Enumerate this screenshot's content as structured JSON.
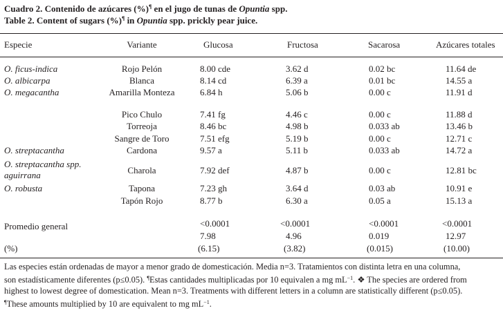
{
  "caption": {
    "es": {
      "prefix": "Cuadro 2. Contenido de azúcares (%)",
      "sup": "¶",
      "suffix": " en el jugo de tunas de ",
      "genus": "Opuntia",
      "end": " spp."
    },
    "en": {
      "prefix": "Table 2. Content of sugars (%)",
      "sup": "¶",
      "suffix": " in ",
      "genus": "Opuntia",
      "end": " spp. prickly pear juice."
    }
  },
  "headers": [
    "Especie",
    "Variante",
    "Glucosa",
    "Fructosa",
    "Sacarosa",
    "Azúcares totales"
  ],
  "rows": [
    {
      "especie": "O. ficus-indica",
      "variante": "Rojo Pelón",
      "glucosa": "8.00 cde",
      "fructosa": "3.62 d",
      "sacarosa": "0.02 bc",
      "totales": "11.64 de"
    },
    {
      "especie": "O. albicarpa",
      "variante": "Blanca",
      "glucosa": "8.14 cd",
      "fructosa": "6.39 a",
      "sacarosa": "0.01 bc",
      "totales": "14.55 a"
    },
    {
      "especie": "O. megacantha",
      "variante": "Amarilla Monteza",
      "glucosa": "6.84 h",
      "fructosa": "5.06 b",
      "sacarosa": "0.00 c",
      "totales": "11.91 d"
    },
    {
      "especie": "",
      "variante": "Pico Chulo",
      "glucosa": "7.41 fg",
      "fructosa": "4.46 c",
      "sacarosa": "0.00 c",
      "totales": "11.88 d"
    },
    {
      "especie": "",
      "variante": "Torreoja",
      "glucosa": "8.46 bc",
      "fructosa": "4.98 b",
      "sacarosa": "0.033 ab",
      "totales": "13.46 b"
    },
    {
      "especie": "",
      "variante": "Sangre de Toro",
      "glucosa": "7.51 efg",
      "fructosa": "5.19 b",
      "sacarosa": "0.00 c",
      "totales": "12.71 c"
    },
    {
      "especie": "O. streptacantha",
      "variante": "Cardona",
      "glucosa": "9.57 a",
      "fructosa": "5.11 b",
      "sacarosa": "0.033 ab",
      "totales": "14.72 a"
    },
    {
      "especie_line1": "O. streptacantha spp.",
      "especie_line2": "aguirrana",
      "variante": "Charola",
      "glucosa": "7.92 def",
      "fructosa": "4.87 b",
      "sacarosa": "0.00 c",
      "totales": "12.81 bc"
    },
    {
      "especie": "O. robusta",
      "variante": "Tapona",
      "glucosa": "7.23 gh",
      "fructosa": "3.64 d",
      "sacarosa": "0.03 ab",
      "totales": "10.91 e"
    },
    {
      "especie": "",
      "variante": "Tapón Rojo",
      "glucosa": "8.77 b",
      "fructosa": "6.30 a",
      "sacarosa": "0.05 a",
      "totales": "15.13 a"
    }
  ],
  "summary": {
    "label": "Promedio general",
    "pvalues": [
      "<0.0001",
      "<0.0001",
      "<0.0001",
      "<0.0001"
    ],
    "means": [
      "7.98",
      "4.96",
      "0.019",
      "12.97"
    ],
    "cv_label": "(%)",
    "cv": [
      "(6.15)",
      "(3.82)",
      "(0.015)",
      "(10.00)"
    ]
  },
  "footnote": {
    "l1": "Las especies están ordenadas de mayor a menor grado de domesticación. Media n=3. Tratamientos con distinta letra en una columna,",
    "l2a": "son estadísticamente diferentes (p≤0.05). ",
    "l2sup": "¶",
    "l2b": "Estas cantidades multiplicadas por 10 equivalen a mg mL",
    "l2exp": "−1",
    "l2c": ". ❖ The species are ordered from",
    "l3": "highest to lowest degree of domestication. Mean n=3. Treatments with different letters in a column are statistically different (p≤0.05).",
    "l4sup": "¶",
    "l4a": "These amounts multiplied by 10 are equivalent to mg mL",
    "l4exp": "−1",
    "l4b": "."
  }
}
